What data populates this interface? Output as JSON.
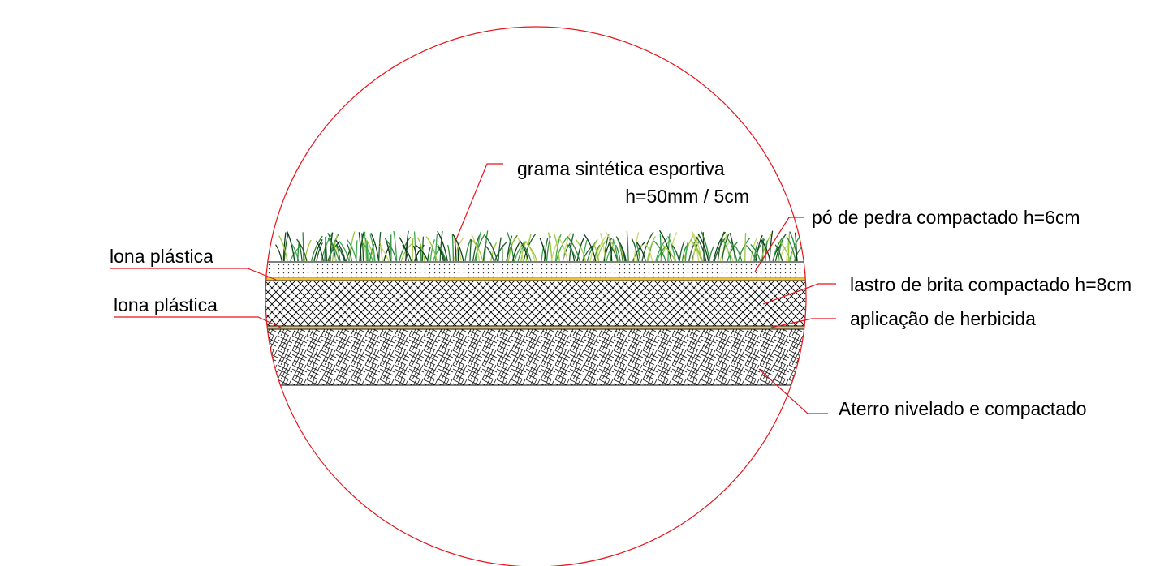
{
  "labels": {
    "grass_line1": "grama sintética esportiva",
    "grass_line2": "h=50mm / 5cm",
    "stone_dust": "pó de pedra compactado h=6cm",
    "gravel": "lastro de brita compactado h=8cm",
    "herbicide": "aplicação de herbicida",
    "fill": "Aterro nivelado e compactado",
    "tarp_top": "lona plástica",
    "tarp_bottom": "lona plástica"
  }
}
